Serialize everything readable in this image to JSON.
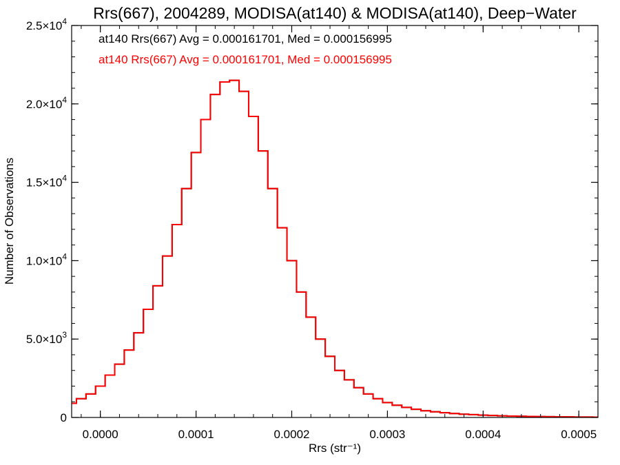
{
  "chart_data": {
    "type": "line",
    "title": "Rrs(667), 2004289, MODISA(at140) & MODISA(at140), Deep−Water",
    "xlabel": "Rrs (str⁻¹)",
    "ylabel": "Number of Observations",
    "xlim": [
      -3e-05,
      0.00052
    ],
    "ylim": [
      0,
      25000
    ],
    "xticks": [
      {
        "value": 0.0,
        "label": "0.0000"
      },
      {
        "value": 0.0001,
        "label": "0.0001"
      },
      {
        "value": 0.0002,
        "label": "0.0002"
      },
      {
        "value": 0.0003,
        "label": "0.0003"
      },
      {
        "value": 0.0004,
        "label": "0.0004"
      },
      {
        "value": 0.0005,
        "label": "0.0005"
      }
    ],
    "yticks": [
      {
        "value": 0,
        "mant": "0",
        "exp": ""
      },
      {
        "value": 5000,
        "mant": "5.0×10",
        "exp": "3"
      },
      {
        "value": 10000,
        "mant": "1.0×10",
        "exp": "4"
      },
      {
        "value": 15000,
        "mant": "1.5×10",
        "exp": "4"
      },
      {
        "value": 20000,
        "mant": "2.0×10",
        "exp": "4"
      },
      {
        "value": 25000,
        "mant": "2.5×10",
        "exp": "4"
      }
    ],
    "annotations": [
      {
        "text": "at140 Rrs(667) Avg = 0.000161701, Med = 0.000156995",
        "color": "#000000"
      },
      {
        "text": "at140 Rrs(667) Avg = 0.000161701, Med = 0.000156995",
        "color": "#ff0000"
      }
    ],
    "series": [
      {
        "color": "#000000",
        "x": [
          -3e-05,
          -2e-05,
          -1e-05,
          0.0,
          1e-05,
          2e-05,
          3e-05,
          4e-05,
          5e-05,
          6e-05,
          7e-05,
          8e-05,
          9e-05,
          0.0001,
          0.00011,
          0.00012,
          0.00013,
          0.00014,
          0.00015,
          0.00016,
          0.00017,
          0.00018,
          0.00019,
          0.0002,
          0.00021,
          0.00022,
          0.00023,
          0.00024,
          0.00025,
          0.00026,
          0.00027,
          0.00028,
          0.00029,
          0.0003,
          0.00031,
          0.00032,
          0.00033,
          0.00034,
          0.00035,
          0.00036,
          0.00037,
          0.00038,
          0.00039,
          0.0004,
          0.00041,
          0.00042,
          0.00043,
          0.00044,
          0.00045,
          0.00046,
          0.00047,
          0.00048,
          0.00049,
          0.0005,
          0.00051,
          0.00052
        ],
        "values": [
          900,
          1200,
          1500,
          2000,
          2700,
          3400,
          4300,
          5400,
          6900,
          8400,
          10300,
          12300,
          14600,
          16900,
          19000,
          20600,
          21400,
          21500,
          20800,
          19200,
          17000,
          14600,
          12100,
          10000,
          8000,
          6400,
          5000,
          3900,
          3000,
          2400,
          1900,
          1500,
          1200,
          950,
          780,
          640,
          520,
          430,
          360,
          300,
          250,
          210,
          180,
          150,
          125,
          105,
          90,
          75,
          65,
          55,
          48,
          42,
          36,
          30,
          25,
          20
        ]
      },
      {
        "color": "#ff0000",
        "x": [
          -3e-05,
          -2e-05,
          -1e-05,
          0.0,
          1e-05,
          2e-05,
          3e-05,
          4e-05,
          5e-05,
          6e-05,
          7e-05,
          8e-05,
          9e-05,
          0.0001,
          0.00011,
          0.00012,
          0.00013,
          0.00014,
          0.00015,
          0.00016,
          0.00017,
          0.00018,
          0.00019,
          0.0002,
          0.00021,
          0.00022,
          0.00023,
          0.00024,
          0.00025,
          0.00026,
          0.00027,
          0.00028,
          0.00029,
          0.0003,
          0.00031,
          0.00032,
          0.00033,
          0.00034,
          0.00035,
          0.00036,
          0.00037,
          0.00038,
          0.00039,
          0.0004,
          0.00041,
          0.00042,
          0.00043,
          0.00044,
          0.00045,
          0.00046,
          0.00047,
          0.00048,
          0.00049,
          0.0005,
          0.00051,
          0.00052
        ],
        "values": [
          900,
          1200,
          1500,
          2000,
          2700,
          3400,
          4300,
          5400,
          6900,
          8400,
          10300,
          12300,
          14600,
          16900,
          19000,
          20600,
          21400,
          21500,
          20800,
          19200,
          17000,
          14600,
          12100,
          10000,
          8000,
          6400,
          5000,
          3900,
          3000,
          2400,
          1900,
          1500,
          1200,
          950,
          780,
          640,
          520,
          430,
          360,
          300,
          250,
          210,
          180,
          150,
          125,
          105,
          90,
          75,
          65,
          55,
          48,
          42,
          36,
          30,
          25,
          20
        ]
      }
    ]
  }
}
